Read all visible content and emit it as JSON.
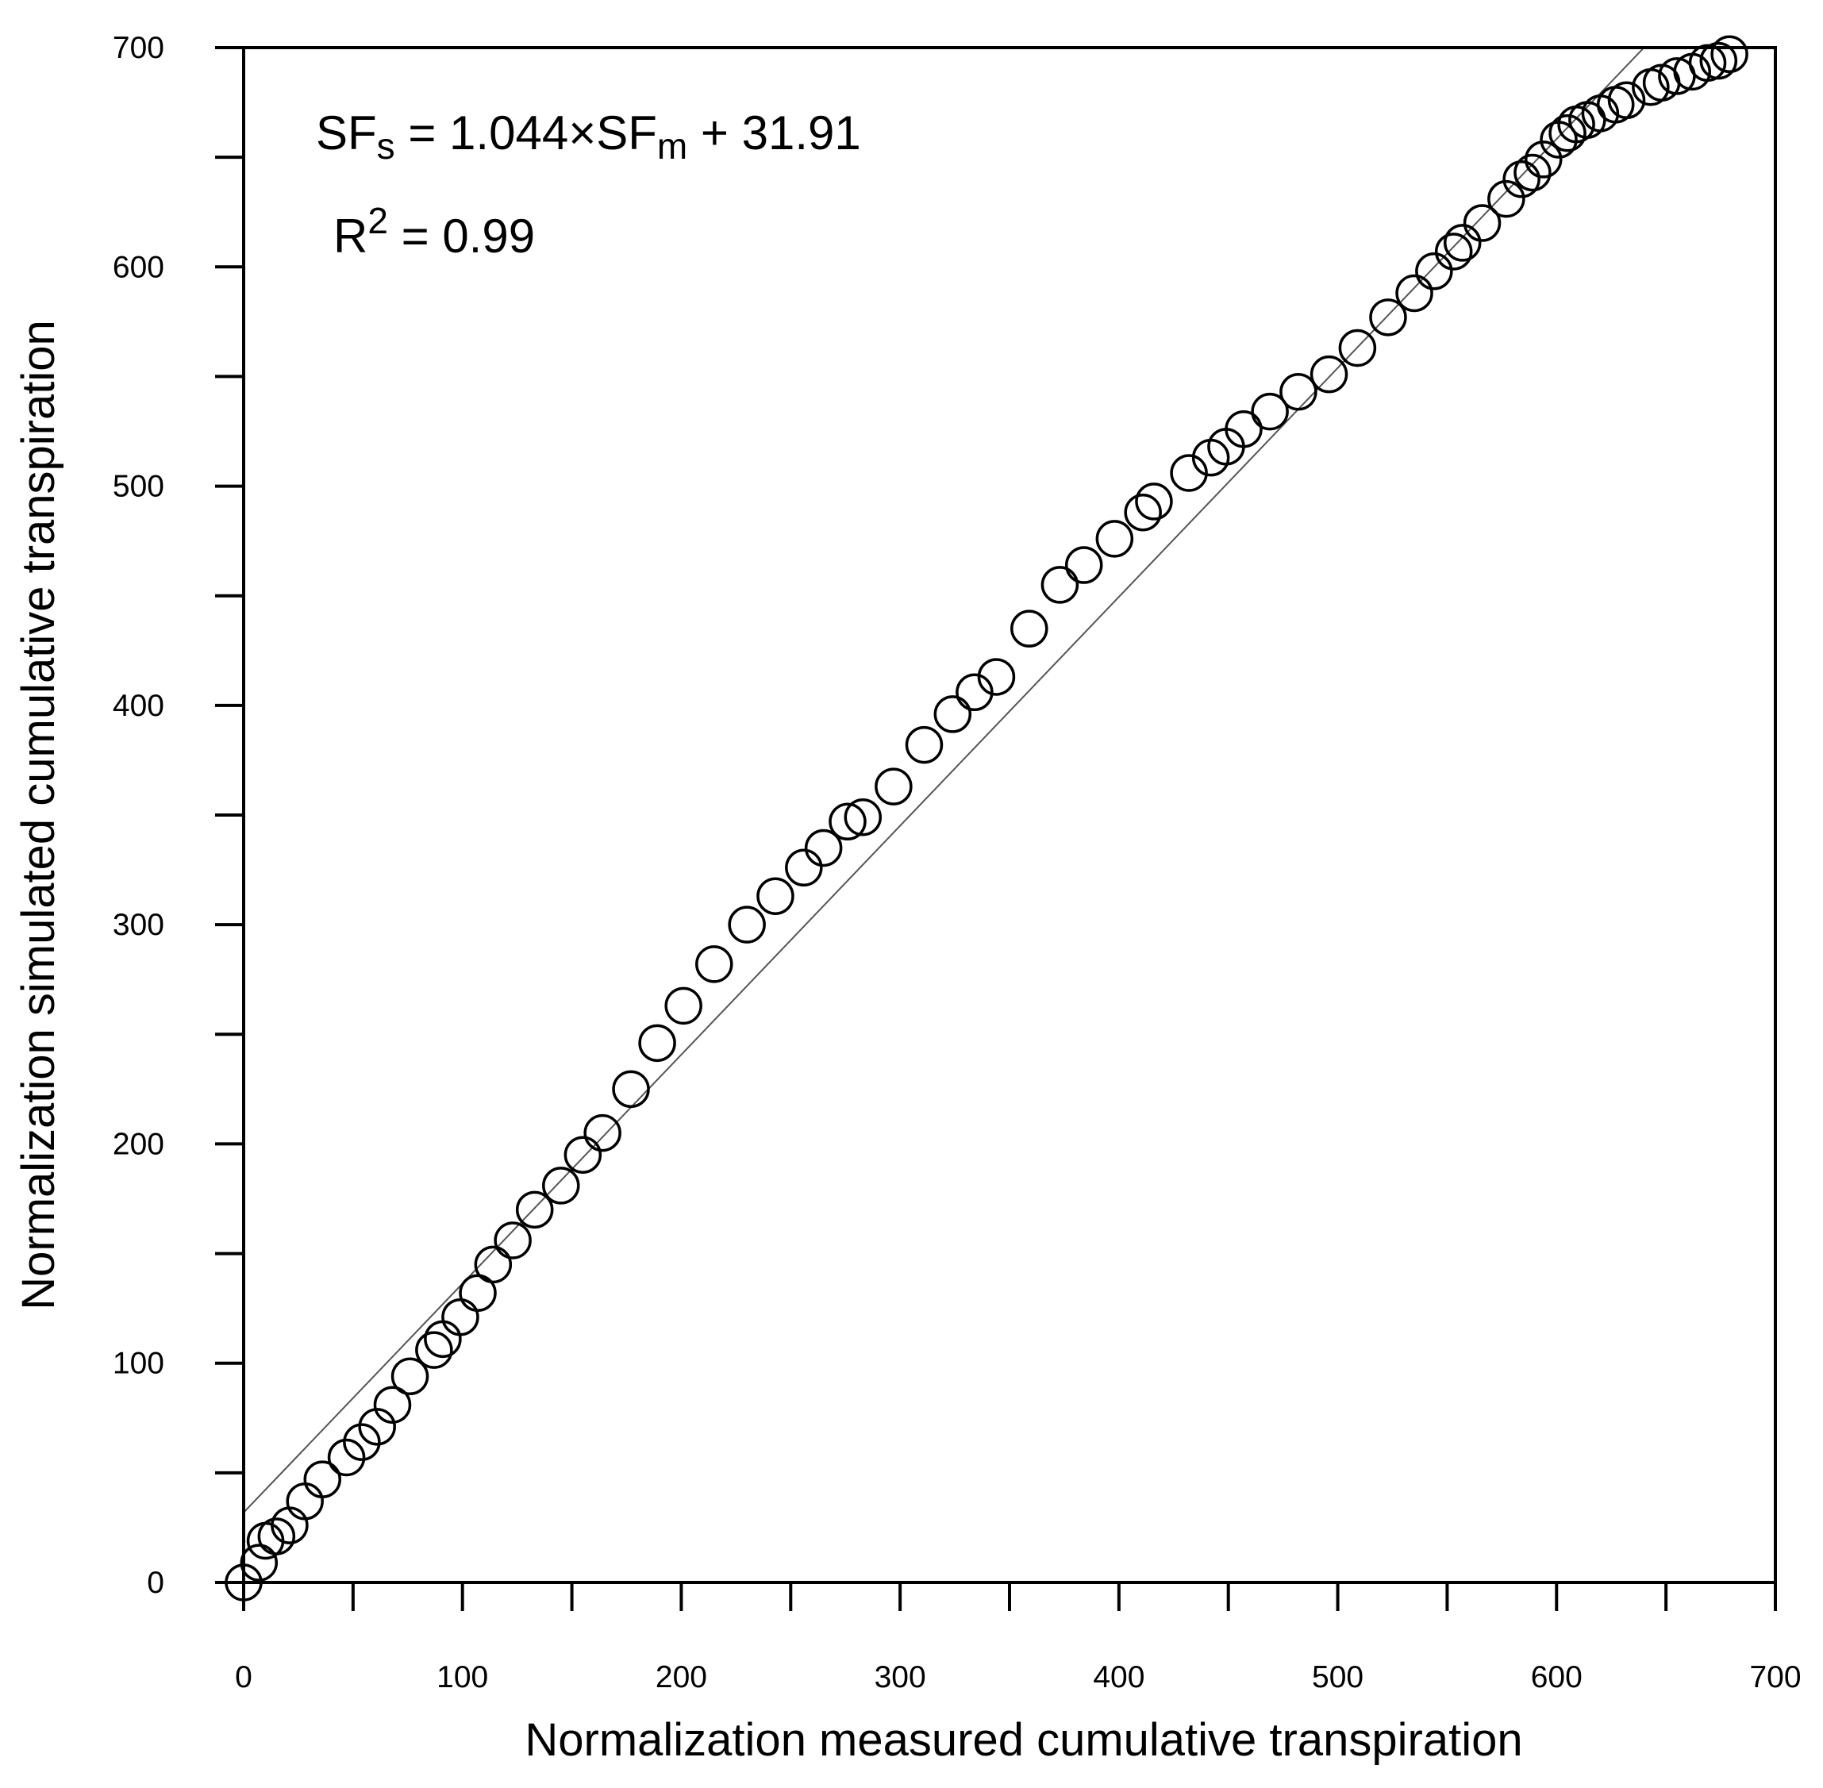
{
  "chart_data": {
    "type": "scatter",
    "xlabel": "Normalization measured cumulative transpiration",
    "ylabel": "Normalization simulated cumulative transpiration",
    "xlim": [
      0,
      700
    ],
    "ylim": [
      0,
      700
    ],
    "xticks": [
      0,
      100,
      200,
      300,
      400,
      500,
      600,
      700
    ],
    "yticks": [
      0,
      100,
      200,
      300,
      400,
      500,
      600,
      700
    ],
    "xticks_minor": [
      50,
      150,
      250,
      350,
      450,
      550,
      650
    ],
    "yticks_minor": [
      50,
      150,
      250,
      350,
      450,
      550,
      650
    ],
    "grid": false,
    "marker": "open-circle",
    "colors": {
      "marker": "#000000",
      "line": "#555555",
      "frame": "#000000"
    },
    "annotations": {
      "equation": {
        "lhs": "SF",
        "lhs_sub": "s",
        "mid": " = 1.044×SF",
        "mid_sub": "m",
        "rhs": " + 31.91"
      },
      "r2": {
        "base": "R",
        "sup": "2",
        "rest": " = 0.99"
      }
    },
    "fit_line": {
      "slope": 1.044,
      "intercept": 31.91,
      "x_range": [
        0,
        640
      ]
    },
    "points": [
      [
        0,
        0
      ],
      [
        7,
        9
      ],
      [
        10,
        19
      ],
      [
        15,
        21
      ],
      [
        21,
        26
      ],
      [
        28,
        37
      ],
      [
        36,
        47
      ],
      [
        47,
        57
      ],
      [
        54,
        64
      ],
      [
        61,
        71
      ],
      [
        68,
        81
      ],
      [
        76,
        94
      ],
      [
        87,
        106
      ],
      [
        91,
        111
      ],
      [
        99,
        121
      ],
      [
        107,
        132
      ],
      [
        114,
        145
      ],
      [
        123,
        156
      ],
      [
        133,
        170
      ],
      [
        145,
        181
      ],
      [
        155,
        195
      ],
      [
        164,
        205
      ],
      [
        177,
        225
      ],
      [
        189,
        246
      ],
      [
        201,
        263
      ],
      [
        215,
        282
      ],
      [
        230,
        300
      ],
      [
        243,
        313
      ],
      [
        256,
        326
      ],
      [
        265,
        335
      ],
      [
        276,
        347
      ],
      [
        283,
        349
      ],
      [
        297,
        363
      ],
      [
        311,
        382
      ],
      [
        324,
        396
      ],
      [
        334,
        406
      ],
      [
        344,
        413
      ],
      [
        359,
        435
      ],
      [
        373,
        455
      ],
      [
        384,
        464
      ],
      [
        398,
        476
      ],
      [
        411,
        488
      ],
      [
        416,
        493
      ],
      [
        432,
        506
      ],
      [
        442,
        513
      ],
      [
        449,
        518
      ],
      [
        457,
        526
      ],
      [
        469,
        534
      ],
      [
        482,
        543
      ],
      [
        496,
        551
      ],
      [
        509,
        563
      ],
      [
        523,
        577
      ],
      [
        535,
        588
      ],
      [
        544,
        598
      ],
      [
        553,
        607
      ],
      [
        557,
        611
      ],
      [
        566,
        620
      ],
      [
        577,
        631
      ],
      [
        584,
        640
      ],
      [
        589,
        643
      ],
      [
        594,
        649
      ],
      [
        601,
        658
      ],
      [
        605,
        661
      ],
      [
        609,
        665
      ],
      [
        614,
        667
      ],
      [
        620,
        670
      ],
      [
        627,
        674
      ],
      [
        632,
        676
      ],
      [
        643,
        682
      ],
      [
        648,
        684
      ],
      [
        655,
        687
      ],
      [
        662,
        689
      ],
      [
        669,
        693
      ],
      [
        674,
        694
      ],
      [
        679,
        697
      ]
    ]
  }
}
